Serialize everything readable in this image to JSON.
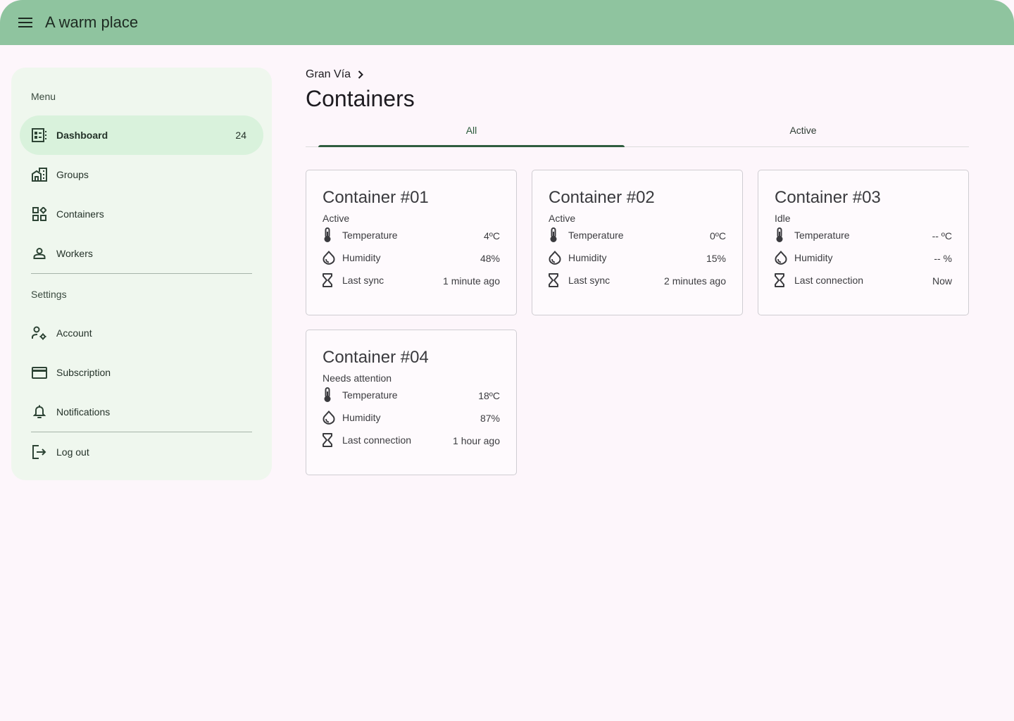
{
  "app": {
    "title": "A warm place"
  },
  "sidebar": {
    "menu_label": "Menu",
    "settings_label": "Settings",
    "items": [
      {
        "label": "Dashboard",
        "icon": "dashboard-icon",
        "badge": "24"
      },
      {
        "label": "Groups",
        "icon": "groups-icon"
      },
      {
        "label": "Containers",
        "icon": "containers-icon"
      },
      {
        "label": "Workers",
        "icon": "person-icon"
      }
    ],
    "settings_items": [
      {
        "label": "Account",
        "icon": "account-settings-icon"
      },
      {
        "label": "Subscription",
        "icon": "credit-card-icon"
      },
      {
        "label": "Notifications",
        "icon": "bell-icon"
      }
    ],
    "logout_label": "Log out"
  },
  "breadcrumb": {
    "label": "Gran Vía"
  },
  "page": {
    "title": "Containers"
  },
  "tabs": [
    {
      "label": "All",
      "active": true
    },
    {
      "label": "Active",
      "active": false
    }
  ],
  "cards": [
    {
      "title": "Container #01",
      "status": "Active",
      "temperature_label": "Temperature",
      "temperature": "4ºC",
      "humidity_label": "Humidity",
      "humidity": "48%",
      "sync_label": "Last sync",
      "sync": "1 minute ago"
    },
    {
      "title": "Container #02",
      "status": "Active",
      "temperature_label": "Temperature",
      "temperature": "0ºC",
      "humidity_label": "Humidity",
      "humidity": "15%",
      "sync_label": "Last sync",
      "sync": "2 minutes ago"
    },
    {
      "title": "Container #03",
      "status": "Idle",
      "temperature_label": "Temperature",
      "temperature": "-- ºC",
      "humidity_label": "Humidity",
      "humidity": "-- %",
      "sync_label": "Last connection",
      "sync": "Now"
    },
    {
      "title": "Container #04",
      "status": "Needs attention",
      "temperature_label": "Temperature",
      "temperature": "18ºC",
      "humidity_label": "Humidity",
      "humidity": "87%",
      "sync_label": "Last connection",
      "sync": "1 hour ago"
    }
  ],
  "colors": {
    "topbar": "#8fc49f",
    "sidebar": "#eff7ee",
    "active_nav": "#d9f2dc",
    "background": "#fdf6fb",
    "tab_indicator": "#2f5d3f"
  }
}
